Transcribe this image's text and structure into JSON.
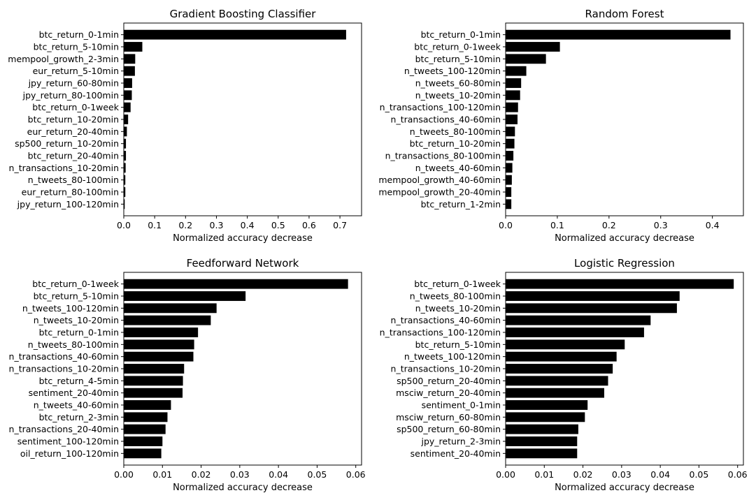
{
  "chart_data": [
    {
      "type": "bar",
      "orientation": "horizontal",
      "title": "Gradient Boosting Classifier",
      "xlabel": "Normalized accuracy decrease",
      "ylabel": "",
      "xlim": [
        0,
        0.77
      ],
      "xticks": [
        0.0,
        0.1,
        0.2,
        0.3,
        0.4,
        0.5,
        0.6,
        0.7
      ],
      "xtick_labels": [
        "0.0",
        "0.1",
        "0.2",
        "0.3",
        "0.4",
        "0.5",
        "0.6",
        "0.7"
      ],
      "grid": false,
      "bar_color": "#000000",
      "categories": [
        "btc_return_0-1min",
        "btc_return_5-10min",
        "mempool_growth_2-3min",
        "eur_return_5-10min",
        "jpy_return_60-80min",
        "jpy_return_80-100min",
        "btc_return_0-1week",
        "btc_return_10-20min",
        "eur_return_20-40min",
        "sp500_return_10-20min",
        "btc_return_20-40min",
        "n_transactions_10-20min",
        "n_tweets_80-100min",
        "eur_return_80-100min",
        "jpy_return_100-120min"
      ],
      "values": [
        0.72,
        0.06,
        0.037,
        0.036,
        0.027,
        0.026,
        0.022,
        0.014,
        0.01,
        0.007,
        0.007,
        0.006,
        0.005,
        0.005,
        0.003
      ]
    },
    {
      "type": "bar",
      "orientation": "horizontal",
      "title": "Random Forest",
      "xlabel": "Normalized accuracy decrease",
      "ylabel": "",
      "xlim": [
        0,
        0.46
      ],
      "xticks": [
        0.0,
        0.1,
        0.2,
        0.3,
        0.4
      ],
      "xtick_labels": [
        "0.0",
        "0.1",
        "0.2",
        "0.3",
        "0.4"
      ],
      "grid": false,
      "bar_color": "#000000",
      "categories": [
        "btc_return_0-1min",
        "btc_return_0-1week",
        "btc_return_5-10min",
        "n_tweets_100-120min",
        "n_tweets_60-80min",
        "n_tweets_10-20min",
        "n_transactions_100-120min",
        "n_transactions_40-60min",
        "n_tweets_80-100min",
        "btc_return_10-20min",
        "n_transactions_80-100min",
        "n_tweets_40-60min",
        "mempool_growth_40-60min",
        "mempool_growth_20-40min",
        "btc_return_1-2min"
      ],
      "values": [
        0.435,
        0.105,
        0.078,
        0.04,
        0.03,
        0.028,
        0.024,
        0.023,
        0.018,
        0.017,
        0.015,
        0.013,
        0.012,
        0.011,
        0.011
      ]
    },
    {
      "type": "bar",
      "orientation": "horizontal",
      "title": "Feedforward Network",
      "xlabel": "Normalized accuracy decrease",
      "ylabel": "",
      "xlim": [
        0,
        0.0615
      ],
      "xticks": [
        0.0,
        0.01,
        0.02,
        0.03,
        0.04,
        0.05,
        0.06
      ],
      "xtick_labels": [
        "0.00",
        "0.01",
        "0.02",
        "0.03",
        "0.04",
        "0.05",
        "0.06"
      ],
      "grid": false,
      "bar_color": "#000000",
      "categories": [
        "btc_return_0-1week",
        "btc_return_5-10min",
        "n_tweets_100-120min",
        "n_tweets_10-20min",
        "btc_return_0-1min",
        "n_tweets_80-100min",
        "n_transactions_40-60min",
        "n_transactions_10-20min",
        "btc_return_4-5min",
        "sentiment_20-40min",
        "n_tweets_40-60min",
        "btc_return_2-3min",
        "n_transactions_20-40min",
        "sentiment_100-120min",
        "oil_return_100-120min"
      ],
      "values": [
        0.058,
        0.0315,
        0.024,
        0.0225,
        0.0192,
        0.0182,
        0.018,
        0.0156,
        0.0153,
        0.0152,
        0.0122,
        0.0113,
        0.0108,
        0.01,
        0.0097
      ]
    },
    {
      "type": "bar",
      "orientation": "horizontal",
      "title": "Logistic Regression",
      "xlabel": "Normalized accuracy decrease",
      "ylabel": "",
      "xlim": [
        0,
        0.0615
      ],
      "xticks": [
        0.0,
        0.01,
        0.02,
        0.03,
        0.04,
        0.05,
        0.06
      ],
      "xtick_labels": [
        "0.00",
        "0.01",
        "0.02",
        "0.03",
        "0.04",
        "0.05",
        "0.06"
      ],
      "grid": false,
      "bar_color": "#000000",
      "categories": [
        "btc_return_0-1week",
        "n_tweets_80-100min",
        "n_tweets_10-20min",
        "n_transactions_40-60min",
        "n_transactions_100-120min",
        "btc_return_5-10min",
        "n_tweets_100-120min",
        "n_transactions_10-20min",
        "sp500_return_20-40min",
        "msciw_return_20-40min",
        "sentiment_0-1min",
        "msciw_return_60-80min",
        "sp500_return_60-80min",
        "jpy_return_2-3min",
        "sentiment_20-40min"
      ],
      "values": [
        0.059,
        0.045,
        0.0443,
        0.0375,
        0.0358,
        0.0308,
        0.0287,
        0.0277,
        0.0265,
        0.0255,
        0.0212,
        0.0205,
        0.0188,
        0.0185,
        0.0185
      ]
    }
  ]
}
